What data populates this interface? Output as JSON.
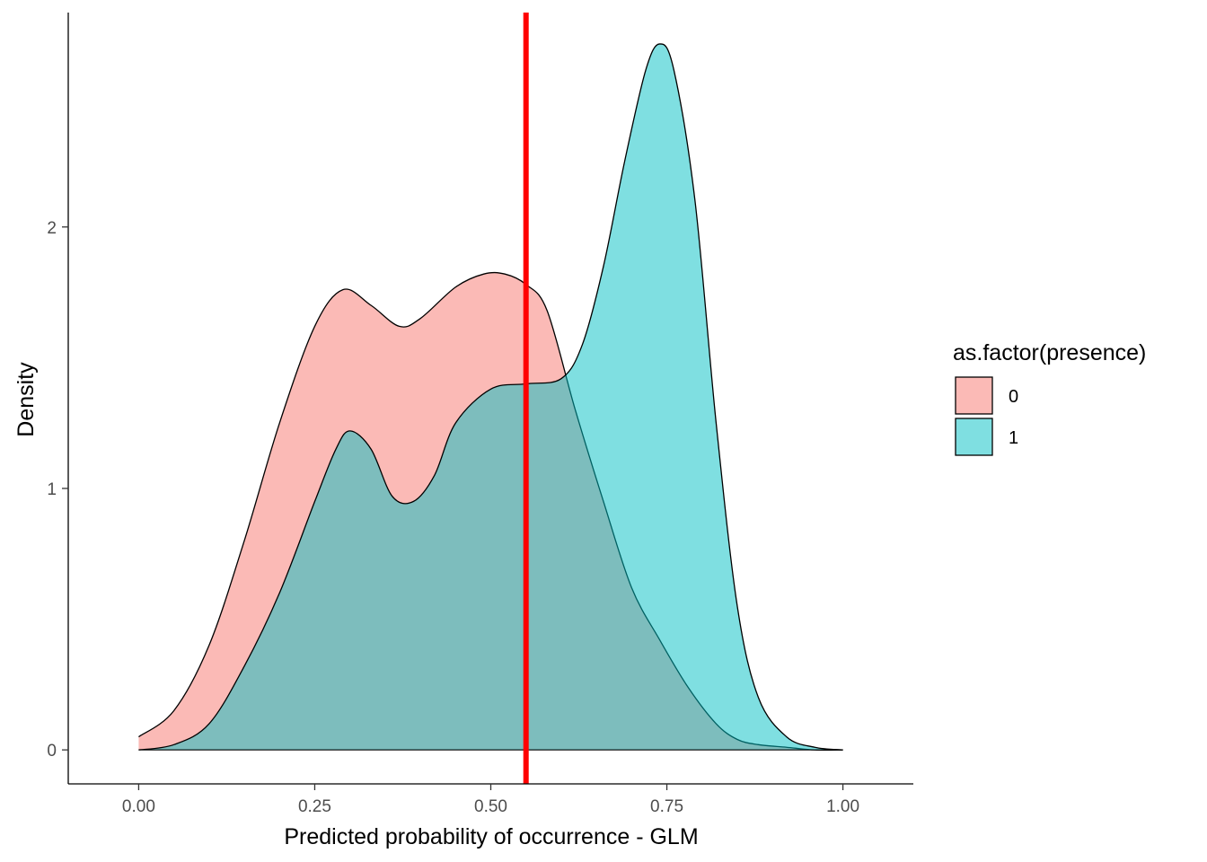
{
  "chart_data": {
    "type": "area",
    "xlabel": "Predicted probability of occurrence - GLM",
    "ylabel": "Density",
    "xlim": [
      -0.1,
      1.1
    ],
    "ylim": [
      -0.13,
      2.82
    ],
    "x_ticks": [
      0.0,
      0.25,
      0.5,
      0.75,
      1.0
    ],
    "x_tick_labels": [
      "0.00",
      "0.25",
      "0.50",
      "0.75",
      "1.00"
    ],
    "y_ticks": [
      0,
      1,
      2
    ],
    "y_tick_labels": [
      "0",
      "1",
      "2"
    ],
    "grid": false,
    "legend": {
      "title": "as.factor(presence)",
      "position": "right"
    },
    "vline": {
      "x": 0.55,
      "color": "#ff0000"
    },
    "series": [
      {
        "name": "0",
        "fill": "#F8766D",
        "fill_opacity": 0.5,
        "x": [
          0.0,
          0.05,
          0.1,
          0.15,
          0.2,
          0.25,
          0.29,
          0.33,
          0.37,
          0.4,
          0.45,
          0.49,
          0.52,
          0.55,
          0.58,
          0.62,
          0.66,
          0.7,
          0.74,
          0.78,
          0.82,
          0.85,
          0.88,
          0.92,
          0.96,
          1.0
        ],
        "y": [
          0.05,
          0.15,
          0.4,
          0.8,
          1.25,
          1.62,
          1.76,
          1.7,
          1.62,
          1.65,
          1.77,
          1.82,
          1.82,
          1.78,
          1.68,
          1.3,
          0.95,
          0.62,
          0.42,
          0.24,
          0.1,
          0.04,
          0.02,
          0.01,
          0.0,
          0.0
        ]
      },
      {
        "name": "1",
        "fill": "#00BFC4",
        "fill_opacity": 0.5,
        "x": [
          0.0,
          0.05,
          0.1,
          0.15,
          0.2,
          0.25,
          0.28,
          0.3,
          0.33,
          0.36,
          0.39,
          0.42,
          0.45,
          0.5,
          0.55,
          0.6,
          0.63,
          0.66,
          0.69,
          0.72,
          0.74,
          0.76,
          0.79,
          0.82,
          0.85,
          0.88,
          0.92,
          0.96,
          1.0
        ],
        "y": [
          0.0,
          0.02,
          0.1,
          0.32,
          0.6,
          0.95,
          1.15,
          1.22,
          1.15,
          0.97,
          0.95,
          1.05,
          1.25,
          1.38,
          1.4,
          1.42,
          1.55,
          1.85,
          2.25,
          2.6,
          2.7,
          2.6,
          2.1,
          1.25,
          0.55,
          0.2,
          0.05,
          0.01,
          0.0
        ]
      }
    ]
  }
}
